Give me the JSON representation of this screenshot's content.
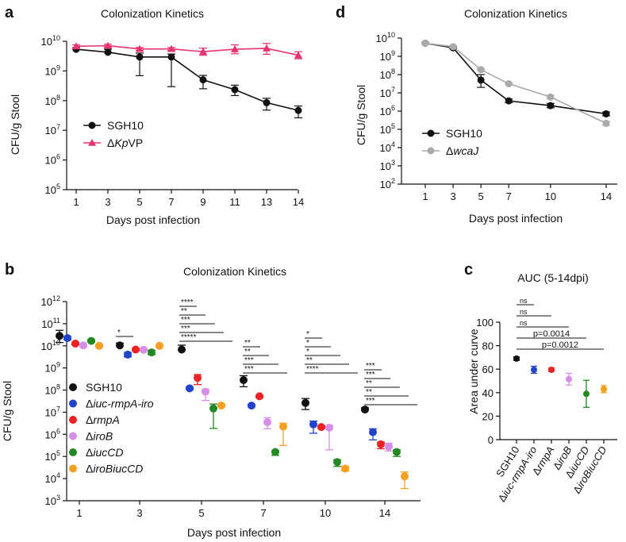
{
  "chart_data": [
    {
      "panel": "a",
      "type": "line",
      "title": "Colonization Kinetics",
      "xlabel": "Days post infection",
      "ylabel": "CFU/g Stool",
      "yscale": "log10",
      "ylim_exp": [
        5,
        10
      ],
      "x": [
        1,
        3,
        5,
        7,
        9,
        11,
        13,
        14
      ],
      "x_ticks": [
        "1",
        "3",
        "5",
        "7",
        "9",
        "11",
        "13",
        "14"
      ],
      "y_ticks_exp": [
        5,
        6,
        7,
        8,
        9,
        10
      ],
      "legend_position": "left-middle",
      "series": [
        {
          "name": "SGH10",
          "color": "#111111",
          "marker": "circle",
          "log10_values": [
            9.73,
            9.63,
            9.47,
            9.47,
            8.7,
            8.37,
            7.93,
            7.67
          ],
          "err_low": [
            0,
            0,
            0.63,
            1.0,
            0.3,
            0.2,
            0.25,
            0.25
          ],
          "err_high": [
            0.06,
            0.1,
            0.13,
            0.1,
            0.15,
            0.15,
            0.15,
            0.15
          ]
        },
        {
          "name_prefix": "Δ",
          "name_italic": "Kp",
          "name_suffix": "VP",
          "color": "#e8336e",
          "marker": "triangle",
          "log10_values": [
            9.83,
            9.85,
            9.74,
            9.74,
            9.65,
            9.73,
            9.76,
            9.53
          ],
          "err_low": [
            0.05,
            0.05,
            0.05,
            0.05,
            0.12,
            0.15,
            0.2,
            0.12
          ],
          "err_high": [
            0.05,
            0.05,
            0.05,
            0.05,
            0.12,
            0.15,
            0.17,
            0.12
          ]
        }
      ]
    },
    {
      "panel": "d",
      "type": "line",
      "title": "Colonization Kinetics",
      "xlabel": "Days post infection",
      "ylabel": "CFU/g Stool",
      "yscale": "log10",
      "ylim_exp": [
        2,
        10
      ],
      "x": [
        1,
        3,
        5,
        7,
        10,
        14
      ],
      "x_ticks": [
        "1",
        "3",
        "5",
        "7",
        "10",
        "14"
      ],
      "y_ticks_exp": [
        2,
        3,
        4,
        5,
        6,
        7,
        8,
        9,
        10
      ],
      "legend_position": "left-middle",
      "series": [
        {
          "name": "SGH10",
          "color": "#111111",
          "marker": "circle",
          "log10_values": [
            9.72,
            9.47,
            7.7,
            6.56,
            6.3,
            5.85
          ],
          "err_low": [
            0.05,
            0.05,
            0.4,
            0.1,
            0.12,
            0.1
          ],
          "err_high": [
            0.05,
            0.05,
            0.3,
            0.1,
            0.12,
            0.1
          ]
        },
        {
          "name": "ΔwcaJ",
          "color": "#aaaaaa",
          "marker": "circle",
          "log10_values": [
            9.72,
            9.53,
            8.27,
            7.5,
            6.77,
            5.33
          ],
          "err_low": [
            0.05,
            0.05,
            0.05,
            0.05,
            0.1,
            0.1
          ],
          "err_high": [
            0.05,
            0.05,
            0.05,
            0.05,
            0.1,
            0.1
          ]
        }
      ]
    },
    {
      "panel": "b",
      "type": "scatter",
      "title": "Colonization Kinetics",
      "xlabel": "Days post infection",
      "ylabel": "CFU/g Stool",
      "yscale": "log10",
      "ylim_exp": [
        3,
        12
      ],
      "categories": [
        "1",
        "3",
        "5",
        "7",
        "10",
        "14"
      ],
      "y_ticks_exp": [
        3,
        4,
        5,
        6,
        7,
        8,
        9,
        10,
        11,
        12
      ],
      "legend_position": "left-middle",
      "series": [
        {
          "name": "SGH10",
          "color": "#111111",
          "log10_values": [
            10.45,
            10.02,
            9.83,
            8.45,
            7.42,
            7.12
          ],
          "err_low": [
            0.3,
            0,
            0,
            0.3,
            0.3,
            0
          ],
          "err_high": [
            0.25,
            0.1,
            0.2,
            0.2,
            0.2,
            0.08
          ]
        },
        {
          "name": "Δiuc-rmpA-iro",
          "color": "#2244cc",
          "log10_values": [
            10.35,
            9.6,
            8.08,
            7.3,
            6.45,
            6.1
          ],
          "err_low": [
            0.08,
            0.1,
            0.05,
            0.05,
            0.4,
            0.35
          ],
          "err_high": [
            0.08,
            0.1,
            0.05,
            0.05,
            0.15,
            0.15
          ]
        },
        {
          "name": "ΔrmpA",
          "color": "#ee2222",
          "log10_values": [
            10.1,
            9.83,
            8.55,
            7.72,
            6.33,
            5.55
          ],
          "err_low": [
            0.05,
            0.05,
            0.3,
            0.05,
            0.05,
            0.2
          ],
          "err_high": [
            0.05,
            0.05,
            0.15,
            0.05,
            0.05,
            0.1
          ]
        },
        {
          "name": "ΔiroB",
          "color": "#d78ee6",
          "log10_values": [
            10.02,
            9.82,
            7.93,
            6.55,
            6.3,
            5.45
          ],
          "err_low": [
            0.05,
            0.05,
            0.4,
            0.3,
            1.0,
            0.2
          ],
          "err_high": [
            0.05,
            0.05,
            0.1,
            0.2,
            0.1,
            0.15
          ]
        },
        {
          "name": "ΔiucCD",
          "color": "#228822",
          "log10_values": [
            10.22,
            9.7,
            7.17,
            5.2,
            4.75,
            5.2
          ],
          "err_low": [
            0.05,
            0.1,
            0.9,
            0.15,
            0.2,
            0.2
          ],
          "err_high": [
            0.05,
            0.1,
            0.2,
            0.05,
            0.1,
            0.1
          ]
        },
        {
          "name": "ΔiroBiucCD",
          "color": "#f5a020",
          "log10_values": [
            10.0,
            10.0,
            7.3,
            6.35,
            4.45,
            4.1
          ],
          "err_low": [
            0.05,
            0.05,
            0.05,
            0.85,
            0.1,
            0.55
          ],
          "err_high": [
            0.05,
            0.05,
            0.05,
            0.15,
            0.1,
            0.2
          ]
        }
      ],
      "significance": [
        {
          "day": "3",
          "labels": [
            "*"
          ]
        },
        {
          "day": "5",
          "labels": [
            "****",
            "**",
            "***",
            "***",
            "*****"
          ]
        },
        {
          "day": "7",
          "labels": [
            "**",
            "**",
            "***",
            "***"
          ]
        },
        {
          "day": "10",
          "labels": [
            "*",
            "*",
            "*",
            "**",
            "****"
          ]
        },
        {
          "day": "14",
          "labels": [
            "***",
            "***",
            "**",
            "**",
            "***"
          ]
        }
      ]
    },
    {
      "panel": "c",
      "type": "scatter",
      "title": "AUC (5-14dpi)",
      "xlabel": "",
      "ylabel": "Area under curve",
      "ylim": [
        0,
        100
      ],
      "y_ticks": [
        0,
        20,
        40,
        60,
        80,
        100
      ],
      "categories": [
        "SGH10",
        "Δiuc-rmpA-iro",
        "ΔrmpA",
        "ΔiroB",
        "ΔiucCD",
        "ΔiroBiucCD"
      ],
      "colors": [
        "#111111",
        "#2244cc",
        "#ee2222",
        "#d78ee6",
        "#228822",
        "#f5a020"
      ],
      "values": [
        69,
        59.5,
        59.5,
        51.5,
        39,
        43
      ],
      "err": [
        1.5,
        3,
        1.5,
        5,
        11.5,
        3
      ],
      "comparisons": [
        {
          "label": "ns",
          "to_index": 1
        },
        {
          "label": "ns",
          "to_index": 2
        },
        {
          "label": "ns",
          "to_index": 3
        },
        {
          "label": "p=0.0014",
          "to_index": 4
        },
        {
          "label": "p=0.0012",
          "to_index": 5
        }
      ]
    }
  ],
  "panel_letters": [
    "a",
    "d",
    "b",
    "c"
  ]
}
